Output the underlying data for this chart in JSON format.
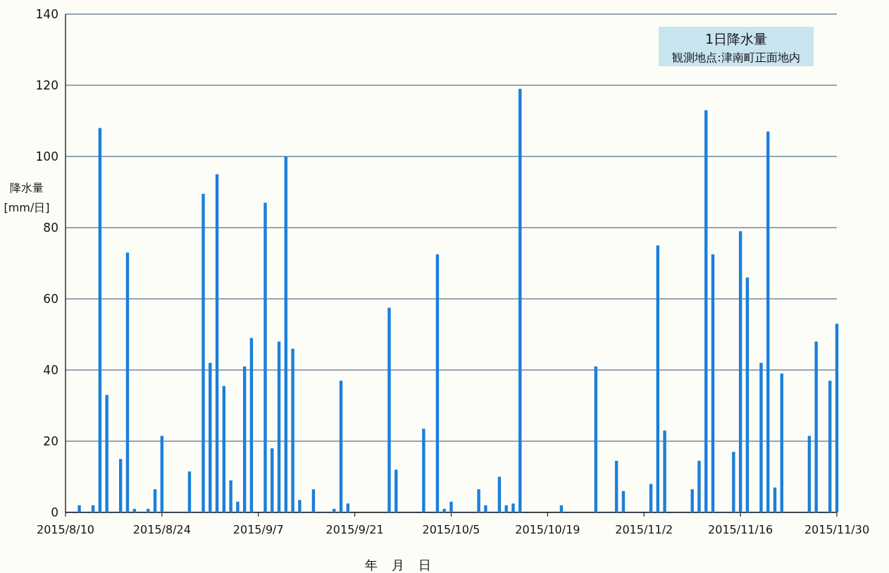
{
  "chart_data": {
    "type": "bar",
    "title": "1日降水量",
    "subtitle": "観測地点:津南町正面地内",
    "ylabel": "降水量 [mm/日]",
    "xlabel": "年 月 日",
    "color": "#1a7fdb",
    "grid": "y",
    "x": [
      "2015-08-12",
      "2015-08-14",
      "2015-08-15",
      "2015-08-16",
      "2015-08-18",
      "2015-08-19",
      "2015-08-20",
      "2015-08-22",
      "2015-08-23",
      "2015-08-24",
      "2015-08-28",
      "2015-08-30",
      "2015-08-31",
      "2015-09-01",
      "2015-09-02",
      "2015-09-03",
      "2015-09-04",
      "2015-09-05",
      "2015-09-06",
      "2015-09-08",
      "2015-09-09",
      "2015-09-10",
      "2015-09-11",
      "2015-09-12",
      "2015-09-13",
      "2015-09-15",
      "2015-09-18",
      "2015-09-19",
      "2015-09-20",
      "2015-09-26",
      "2015-09-27",
      "2015-10-01",
      "2015-10-03",
      "2015-10-04",
      "2015-10-05",
      "2015-10-09",
      "2015-10-10",
      "2015-10-12",
      "2015-10-13",
      "2015-10-14",
      "2015-10-15",
      "2015-10-21",
      "2015-10-26",
      "2015-10-29",
      "2015-10-30",
      "2015-11-03",
      "2015-11-04",
      "2015-11-05",
      "2015-11-09",
      "2015-11-10",
      "2015-11-11",
      "2015-11-12",
      "2015-11-15",
      "2015-11-16",
      "2015-11-17",
      "2015-11-19",
      "2015-11-20",
      "2015-11-21",
      "2015-11-22",
      "2015-11-26",
      "2015-11-27",
      "2015-11-29",
      "2015-11-30"
    ],
    "values": [
      2,
      2,
      108,
      33,
      15,
      73,
      1,
      1,
      6.5,
      21.5,
      11.5,
      89.5,
      42,
      95,
      35.5,
      9,
      3,
      41,
      49,
      87,
      18,
      48,
      100,
      46,
      3.5,
      6.5,
      1,
      37,
      2.5,
      57.5,
      12,
      23.5,
      72.5,
      1,
      3,
      6.5,
      2,
      10,
      2,
      2.5,
      119,
      2,
      41,
      14.5,
      6,
      8,
      75,
      23,
      6.5,
      14.5,
      113,
      72.5,
      17,
      79,
      66,
      42,
      107,
      7,
      39,
      21.5,
      48,
      37,
      53
    ],
    "xlim": [
      "2015-08-10",
      "2015-11-30"
    ],
    "xticks": [
      {
        "value": "2015-08-10",
        "label": "2015/8/10"
      },
      {
        "value": "2015-08-24",
        "label": "2015/8/24"
      },
      {
        "value": "2015-09-07",
        "label": "2015/9/7"
      },
      {
        "value": "2015-09-21",
        "label": "2015/9/21"
      },
      {
        "value": "2015-10-05",
        "label": "2015/10/5"
      },
      {
        "value": "2015-10-19",
        "label": "2015/10/19"
      },
      {
        "value": "2015-11-02",
        "label": "2015/11/2"
      },
      {
        "value": "2015-11-16",
        "label": "2015/11/16"
      },
      {
        "value": "2015-11-30",
        "label": "2015/11/30"
      }
    ],
    "ylim": [
      0,
      140
    ],
    "yticks": [
      0,
      20,
      40,
      60,
      80,
      100,
      120,
      140
    ]
  }
}
